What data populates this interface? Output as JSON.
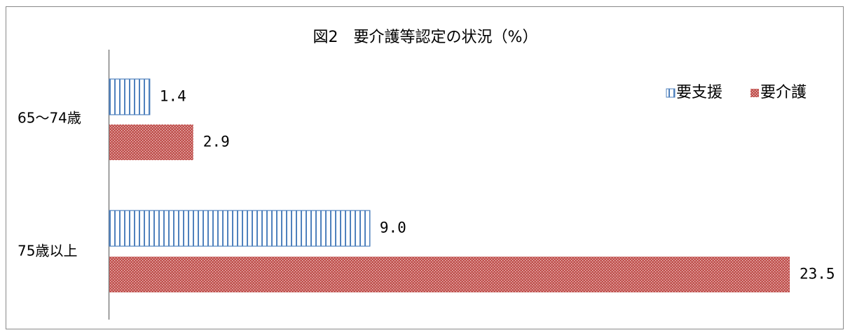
{
  "chart_data": {
    "type": "bar",
    "orientation": "horizontal",
    "title": "図2　要介護等認定の状況（%）",
    "categories": [
      "65～74歳",
      "75歳以上"
    ],
    "series": [
      {
        "name": "要支援",
        "values": [
          1.4,
          9.0
        ],
        "value_labels": [
          "1.4",
          "9.0"
        ],
        "pattern": "vertical-stripes",
        "color": "#4f81bd"
      },
      {
        "name": "要介護",
        "values": [
          2.9,
          23.5
        ],
        "value_labels": [
          "2.9",
          "23.5"
        ],
        "pattern": "dots",
        "color": "#c0504d"
      }
    ],
    "xlim": [
      0,
      23.5
    ],
    "legend": "top-right",
    "grid": false,
    "xaxis_visible": false
  }
}
